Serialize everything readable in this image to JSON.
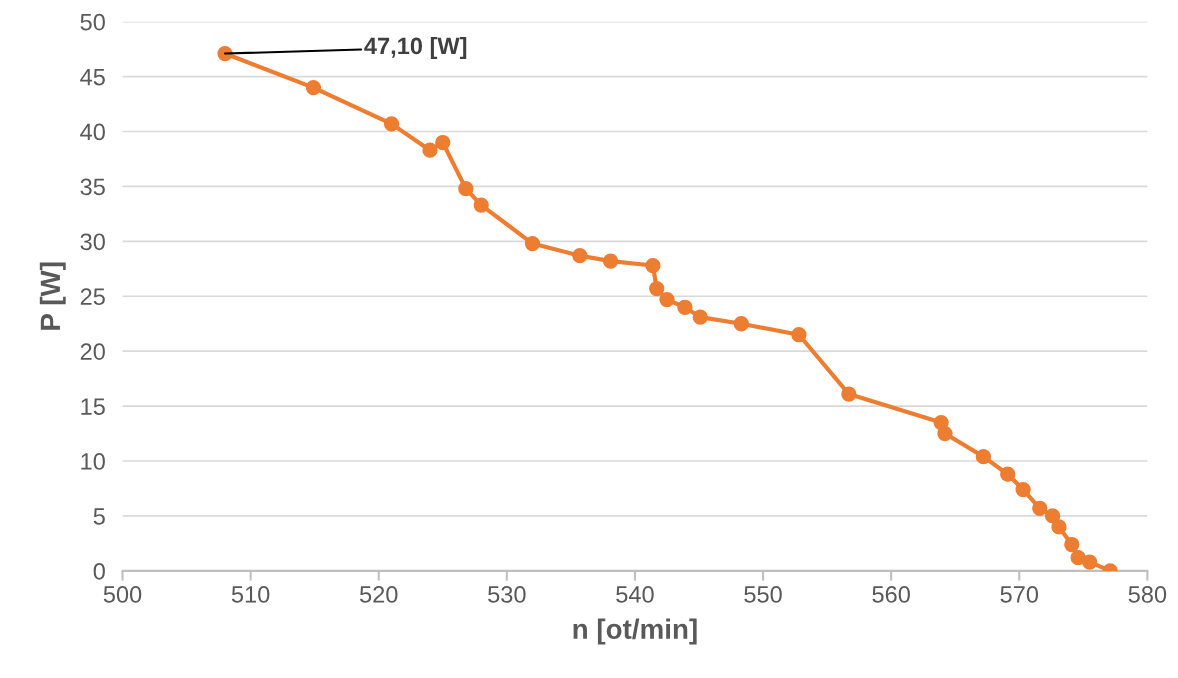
{
  "chart_data": {
    "type": "line",
    "xlabel": "n [ot/min]",
    "ylabel": "P [W]",
    "x": [
      508.0,
      514.9,
      521.0,
      524.0,
      525.0,
      526.8,
      528.0,
      532.0,
      535.7,
      538.1,
      541.4,
      541.7,
      542.5,
      543.9,
      545.1,
      548.3,
      552.8,
      556.7,
      563.9,
      564.2,
      567.2,
      569.1,
      570.3,
      571.6,
      572.6,
      573.1,
      574.1,
      574.6,
      575.5,
      577.1
    ],
    "series": [
      {
        "color": "#ed7d31",
        "values": [
          47.1,
          44.0,
          40.7,
          38.3,
          39.0,
          34.8,
          33.3,
          29.8,
          28.7,
          28.2,
          27.8,
          25.7,
          24.7,
          24.0,
          23.1,
          22.5,
          21.5,
          16.1,
          13.5,
          12.5,
          10.4,
          8.8,
          7.4,
          5.7,
          5.0,
          4.0,
          2.4,
          1.2,
          0.8,
          0.0
        ]
      }
    ],
    "xlim": [
      500,
      580
    ],
    "xticks": [
      500,
      510,
      520,
      530,
      540,
      550,
      560,
      570,
      580
    ],
    "ylim": [
      0,
      50
    ],
    "yticks": [
      0,
      5,
      10,
      15,
      20,
      25,
      30,
      35,
      40,
      45,
      50
    ],
    "grid": "y",
    "marker": "circle",
    "line_style": "solid",
    "annotations": [
      {
        "text": "47,10 [W]",
        "x": 508.0,
        "y": 47.1
      }
    ]
  }
}
